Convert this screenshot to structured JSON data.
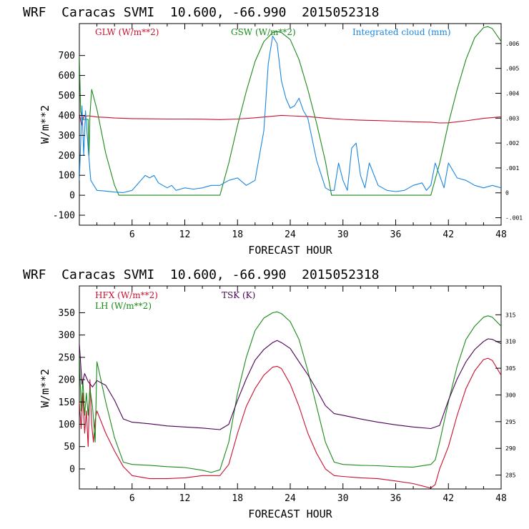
{
  "chart_data": [
    {
      "type": "line",
      "title": "WRF  Caracas SVMI  10.600, -66.990  2015052318",
      "xlabel": "FORECAST HOUR",
      "ylabel": "W/m**2",
      "xlim": [
        0,
        48
      ],
      "ylim": [
        -150,
        860
      ],
      "xticks": [
        "6",
        "12",
        "18",
        "24",
        "30",
        "36",
        "42",
        "48"
      ],
      "yticks": [
        "-100",
        "0",
        "100",
        "200",
        "300",
        "400",
        "500",
        "600",
        "700"
      ],
      "right_axis": {
        "ylim": [
          -0.0013,
          0.0068
        ],
        "ticks": [
          ".006",
          ".005",
          ".004",
          ".003",
          ".002",
          ".001",
          "0",
          "-.001"
        ]
      },
      "series": [
        {
          "name": "GLW (W/m**2)",
          "color": "#c8102e",
          "axis": "left",
          "x": [
            0,
            0.25,
            0.5,
            1,
            1.5,
            2,
            3,
            4,
            6,
            8,
            10,
            12,
            14,
            16,
            18,
            20,
            22,
            23,
            24,
            26,
            28,
            30,
            32,
            34,
            36,
            38,
            40,
            41,
            42,
            44,
            46,
            48
          ],
          "y": [
            410,
            350,
            395,
            398,
            395,
            392,
            390,
            387,
            384,
            383,
            382,
            382,
            381,
            379,
            382,
            388,
            396,
            400,
            398,
            394,
            386,
            380,
            376,
            374,
            371,
            368,
            366,
            362,
            363,
            373,
            385,
            393
          ]
        },
        {
          "name": "GSW (W/m**2)",
          "color": "#1a8a1a",
          "axis": "left",
          "x": [
            0,
            0.15,
            0.35,
            1,
            1.1,
            1.2,
            1.4,
            2,
            3,
            4,
            4.5,
            16,
            17,
            18,
            19,
            20,
            21,
            22,
            22.5,
            23,
            24,
            25,
            26,
            27,
            28,
            28.7,
            40,
            41,
            42,
            43,
            44,
            45,
            46,
            46.5,
            47,
            48
          ],
          "y": [
            700,
            420,
            380,
            380,
            200,
            400,
            530,
            430,
            210,
            50,
            0,
            0,
            160,
            350,
            520,
            670,
            770,
            815,
            820,
            815,
            780,
            680,
            530,
            360,
            170,
            0,
            0,
            160,
            360,
            530,
            680,
            790,
            840,
            845,
            835,
            770
          ]
        },
        {
          "name": "Integrated cloud (mm)",
          "color": "#1a86e0",
          "axis": "right",
          "x": [
            0,
            0.3,
            0.5,
            0.7,
            1,
            1.3,
            2,
            3,
            4,
            5,
            6,
            7,
            7.5,
            8,
            8.5,
            9,
            10,
            10.5,
            11,
            12,
            13,
            14,
            15,
            16,
            17,
            18,
            19,
            20,
            21,
            21.5,
            22,
            22.5,
            23,
            23.5,
            24,
            24.5,
            25,
            25.5,
            26,
            27,
            28,
            28.5,
            29,
            29.5,
            30,
            30.5,
            31,
            31.5,
            32,
            32.5,
            33,
            34,
            35,
            36,
            37,
            38,
            39,
            39.5,
            40,
            40.5,
            41,
            41.5,
            42,
            43,
            44,
            45,
            46,
            47,
            48
          ],
          "y": [
            0.0005,
            0.0035,
            0.0015,
            0.0033,
            0.0018,
            0.0005,
            0.0001,
            7e-05,
            3e-05,
            1e-05,
            0.0001,
            0.0005,
            0.0007,
            0.0006,
            0.0007,
            0.0004,
            0.0002,
            0.0003,
            0.0001,
            0.0002,
            0.00015,
            0.0002,
            0.0003,
            0.0003,
            0.0005,
            0.0006,
            0.0003,
            0.0005,
            0.0025,
            0.0052,
            0.0063,
            0.006,
            0.0045,
            0.0038,
            0.0034,
            0.0035,
            0.0038,
            0.0033,
            0.003,
            0.0013,
            0.0002,
            0.0001,
            0.0001,
            0.0012,
            0.0005,
            0.0001,
            0.0018,
            0.002,
            0.0007,
            0.0002,
            0.0012,
            0.0003,
            0.0001,
            5e-05,
            0.0001,
            0.0003,
            0.0004,
            0.0001,
            0.0003,
            0.0012,
            0.0007,
            0.0002,
            0.0012,
            0.0006,
            0.0005,
            0.0003,
            0.0002,
            0.0003,
            0.0002
          ]
        }
      ]
    },
    {
      "type": "line",
      "title": "WRF  Caracas SVMI  10.600, -66.990  2015052318",
      "xlabel": "FORECAST HOUR",
      "ylabel": "W/m**2",
      "xlim": [
        0,
        48
      ],
      "ylim": [
        -45,
        410
      ],
      "xticks": [
        "6",
        "12",
        "18",
        "24",
        "30",
        "36",
        "42",
        "48"
      ],
      "yticks": [
        "0",
        "50",
        "100",
        "150",
        "200",
        "250",
        "300",
        "350"
      ],
      "right_axis": {
        "ylim": [
          282.4,
          320.4
        ],
        "ticks": [
          "315",
          "310",
          "305",
          "300",
          "295",
          "290",
          "285"
        ]
      },
      "series": [
        {
          "name": "HFX (W/m**2)",
          "color": "#c8102e",
          "axis": "left",
          "x": [
            0,
            0.2,
            0.4,
            0.6,
            0.8,
            1,
            1.2,
            1.4,
            1.6,
            1.8,
            2,
            3,
            4,
            5,
            6,
            8,
            10,
            12,
            14,
            16,
            17,
            18,
            19,
            20,
            21,
            22,
            22.5,
            23,
            24,
            25,
            26,
            27,
            28,
            29,
            30,
            32,
            34,
            36,
            38,
            40,
            40.5,
            41,
            42,
            43,
            44,
            45,
            46,
            46.5,
            47,
            48
          ],
          "y": [
            150,
            90,
            170,
            80,
            130,
            50,
            200,
            100,
            60,
            110,
            130,
            80,
            40,
            5,
            -15,
            -22,
            -22,
            -20,
            -15,
            -15,
            10,
            80,
            140,
            180,
            210,
            228,
            230,
            225,
            190,
            140,
            80,
            35,
            0,
            -15,
            -17,
            -20,
            -22,
            -27,
            -33,
            -43,
            -35,
            0,
            50,
            120,
            180,
            220,
            245,
            248,
            243,
            210
          ]
        },
        {
          "name": "LH (W/m**2)",
          "color": "#1a8a1a",
          "axis": "left",
          "x": [
            0,
            0.2,
            0.4,
            0.6,
            0.8,
            1,
            1.2,
            1.5,
            1.8,
            2,
            3,
            4,
            5,
            6,
            8,
            10,
            12,
            14,
            15,
            16,
            17,
            18,
            19,
            20,
            21,
            22,
            22.5,
            23,
            24,
            25,
            26,
            27,
            28,
            29,
            30,
            32,
            34,
            36,
            38,
            40,
            40.5,
            41,
            42,
            43,
            44,
            45,
            46,
            46.5,
            47,
            48
          ],
          "y": [
            260,
            130,
            200,
            120,
            170,
            120,
            180,
            140,
            60,
            240,
            150,
            70,
            15,
            10,
            8,
            5,
            3,
            -3,
            -8,
            -2,
            60,
            170,
            250,
            310,
            338,
            350,
            352,
            348,
            330,
            290,
            220,
            140,
            60,
            15,
            10,
            8,
            7,
            5,
            4,
            10,
            20,
            60,
            150,
            230,
            290,
            320,
            340,
            343,
            340,
            320
          ]
        },
        {
          "name": "TSK (K)",
          "color": "#4b0055",
          "axis": "right",
          "x": [
            0,
            0.3,
            0.6,
            1,
            1.5,
            2,
            3,
            4,
            5,
            6,
            8,
            10,
            12,
            14,
            16,
            17,
            18,
            19,
            20,
            21,
            22,
            22.5,
            23,
            24,
            25,
            26,
            27,
            28,
            29,
            30,
            32,
            34,
            36,
            38,
            40,
            41,
            42,
            43,
            44,
            45,
            46,
            46.5,
            47,
            48
          ],
          "y": [
            309.6,
            302,
            304,
            302.5,
            301.5,
            302.7,
            301.8,
            299,
            295.5,
            294.9,
            294.6,
            294.2,
            294,
            293.8,
            293.5,
            294.5,
            299,
            303,
            306.5,
            308.5,
            309.8,
            310.2,
            309.8,
            308.7,
            306.2,
            303.8,
            301,
            298,
            296.5,
            296.2,
            295.5,
            294.9,
            294.4,
            294,
            293.7,
            294.3,
            299,
            303,
            306.2,
            308.5,
            310,
            310.5,
            310.4,
            309.6
          ]
        }
      ]
    }
  ]
}
